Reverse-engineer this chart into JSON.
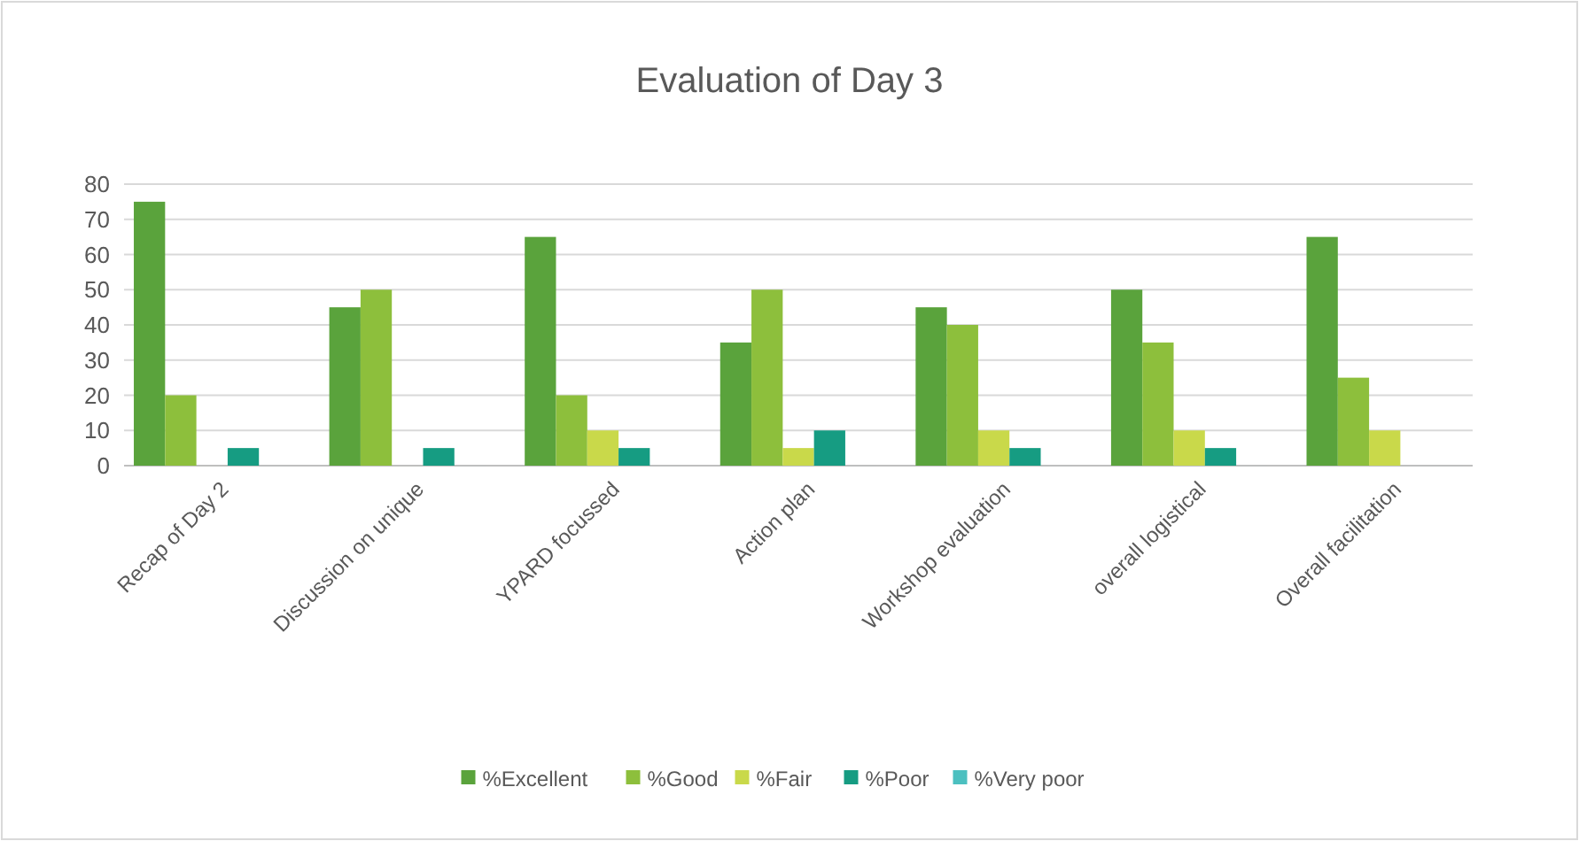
{
  "chart_data": {
    "type": "bar",
    "title": "Evaluation of Day 3",
    "categories": [
      "Recap of Day 2",
      "Discussion on unique",
      "YPARD focussed",
      "Action plan",
      "Workshop evaluation",
      "overall logistical",
      "Overall facilitation"
    ],
    "series": [
      {
        "name": "%Excellent",
        "color": "#5aa33c",
        "values": [
          75,
          45,
          65,
          35,
          45,
          50,
          65
        ]
      },
      {
        "name": "%Good",
        "color": "#8dbf3c",
        "values": [
          20,
          50,
          20,
          50,
          40,
          35,
          25
        ]
      },
      {
        "name": "%Fair",
        "color": "#c9d94a",
        "values": [
          0,
          0,
          10,
          5,
          10,
          10,
          10
        ]
      },
      {
        "name": "%Poor",
        "color": "#169c82",
        "values": [
          5,
          5,
          5,
          10,
          5,
          5,
          0
        ]
      },
      {
        "name": "%Very poor",
        "color": "#4cc0c0",
        "values": [
          0,
          0,
          0,
          0,
          0,
          0,
          0
        ]
      }
    ],
    "ylim": [
      0,
      80
    ],
    "yticks": [
      0,
      10,
      20,
      30,
      40,
      50,
      60,
      70,
      80
    ],
    "grid": "y",
    "legend": "bottom"
  }
}
